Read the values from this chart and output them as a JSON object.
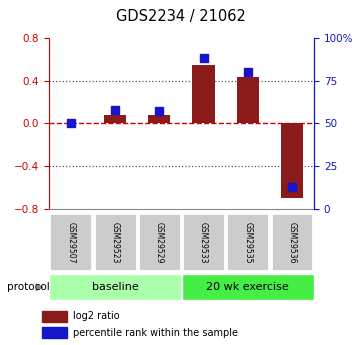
{
  "title": "GDS2234 / 21062",
  "samples": [
    "GSM29507",
    "GSM29523",
    "GSM29529",
    "GSM29533",
    "GSM29535",
    "GSM29536"
  ],
  "log2_ratio": [
    0.0,
    0.08,
    0.08,
    0.55,
    0.43,
    -0.7
  ],
  "percentile_rank": [
    50,
    58,
    57,
    88,
    80,
    13
  ],
  "ylim_left": [
    -0.8,
    0.8
  ],
  "ylim_right": [
    0,
    100
  ],
  "yticks_left": [
    -0.8,
    -0.4,
    0.0,
    0.4,
    0.8
  ],
  "yticks_right": [
    0,
    25,
    50,
    75,
    100
  ],
  "ytick_labels_right": [
    "0",
    "25",
    "50",
    "75",
    "100%"
  ],
  "bar_color": "#8B1A1A",
  "dot_color": "#1515CC",
  "zero_line_color": "#CC0000",
  "dotted_line_color": "#555555",
  "group1_label": "baseline",
  "group2_label": "20 wk exercise",
  "group1_indices": [
    0,
    1,
    2
  ],
  "group2_indices": [
    3,
    4,
    5
  ],
  "group1_color": "#AAFFAA",
  "group2_color": "#44EE44",
  "protocol_label": "protocol",
  "legend_red_label": "log2 ratio",
  "legend_blue_label": "percentile rank within the sample",
  "bar_width": 0.5,
  "dot_size": 28,
  "tick_label_color_left": "#CC0000",
  "tick_label_color_right": "#1515CC",
  "sample_box_color": "#CCCCCC",
  "sample_box_edge": "#FFFFFF"
}
